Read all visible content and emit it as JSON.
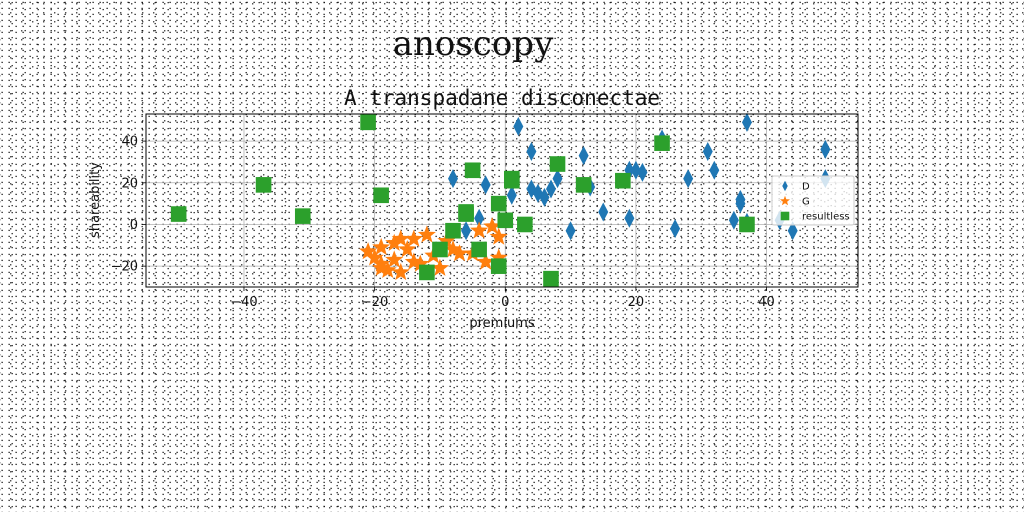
{
  "page": {
    "title": "anoscopy"
  },
  "chart_data": {
    "type": "scatter",
    "title": "A transpadane disconectae",
    "xlabel": "premiums",
    "ylabel": "shareability",
    "xlim": [
      -55,
      54
    ],
    "ylim": [
      -30,
      53
    ],
    "xticks": [
      -40,
      -20,
      0,
      20,
      40
    ],
    "xtick_labels": [
      "−40",
      "−20",
      "0",
      "20",
      "40"
    ],
    "yticks": [
      -20,
      0,
      20,
      40
    ],
    "ytick_labels": [
      "−20",
      "0",
      "20",
      "40"
    ],
    "grid": true,
    "legend_position": "right",
    "series": [
      {
        "name": "D",
        "marker": "diamond",
        "color": "#1f77b4",
        "x": [
          2,
          4,
          4,
          5,
          1,
          6,
          7,
          8,
          10,
          12,
          13,
          15,
          19,
          19,
          20,
          21,
          24,
          26,
          28,
          31,
          32,
          35,
          36,
          36,
          37,
          37,
          42,
          44,
          49,
          49,
          -3,
          -4,
          -6,
          -8
        ],
        "y": [
          47,
          17,
          35,
          15,
          14,
          13,
          17,
          22,
          -3,
          33,
          18,
          6,
          3,
          26,
          26,
          25,
          41,
          -2,
          22,
          35,
          26,
          2,
          12,
          10,
          1,
          49,
          2,
          -3,
          36,
          22,
          19,
          3,
          -3,
          22
        ]
      },
      {
        "name": "G",
        "marker": "star",
        "color": "#ff7f0e",
        "x": [
          -21,
          -20,
          -19,
          -19,
          -18,
          -17,
          -16,
          -16,
          -15,
          -14,
          -14,
          -13,
          -12,
          -11,
          -10,
          -9,
          -8,
          -7,
          -5,
          -4,
          -3,
          -2,
          -1,
          -1,
          -19,
          -17
        ],
        "y": [
          -13,
          -16,
          -11,
          -19,
          -22,
          -17,
          -7,
          -23,
          -12,
          -7,
          -18,
          -19,
          -5,
          -15,
          -21,
          -8,
          -12,
          -14,
          -14,
          -3,
          -18,
          -1,
          -6,
          -16,
          -21,
          -9
        ]
      },
      {
        "name": "resultless",
        "marker": "square",
        "color": "#2ca02c",
        "x": [
          -50,
          -37,
          -31,
          -21,
          -19,
          -12,
          -10,
          -8,
          -6,
          -5,
          -6,
          -4,
          -1,
          -1,
          0,
          1,
          1,
          3,
          7,
          8,
          12,
          18,
          24,
          37
        ],
        "y": [
          5,
          19,
          4,
          49,
          14,
          -23,
          -12,
          -3,
          6,
          26,
          5,
          -12,
          -20,
          10,
          2,
          21,
          22,
          0,
          -26,
          29,
          19,
          21,
          39,
          0
        ]
      }
    ]
  }
}
